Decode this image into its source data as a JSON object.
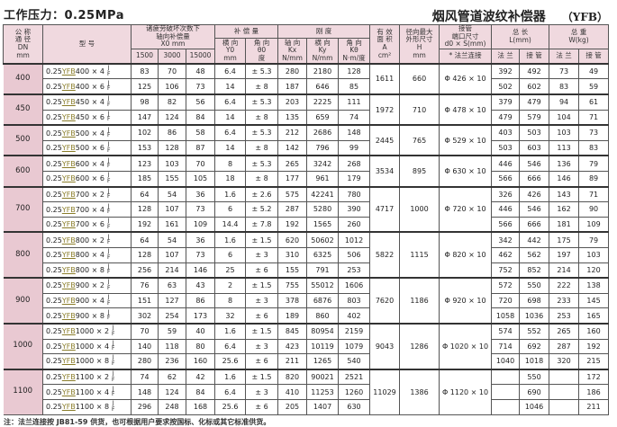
{
  "header": {
    "pressure_title": "工作压力：0.25MPa",
    "product_title": "烟风管道波纹补偿器",
    "product_code": "（YFB）"
  },
  "columns": {
    "dn": [
      "公 称",
      "通 径",
      "DN",
      "mm"
    ],
    "model": "型 号",
    "fatigue": [
      "诸疲劳破坏次数下",
      "轴向补偿量",
      "X0    mm"
    ],
    "fatigue_cycles": [
      "1500",
      "3000",
      "15000"
    ],
    "compensation": "补 偿 量",
    "lateral": [
      "横 向",
      "Y0",
      "mm"
    ],
    "angular": [
      "角 向",
      "θ0",
      "度"
    ],
    "stiffness": "刚 度",
    "kx": [
      "轴 向",
      "Kx",
      "N/mm"
    ],
    "ky": [
      "横 向",
      "Ky",
      "N/mm"
    ],
    "ktheta": [
      "角 向",
      "Kθ",
      "N·m/度"
    ],
    "area": [
      "有 效",
      "面 积",
      "A",
      "cm²"
    ],
    "radial": [
      "径向最大",
      "外形尺寸",
      "H",
      "mm"
    ],
    "pipe": [
      "接管",
      "端口尺寸",
      "d0 × S(mm)"
    ],
    "pipe_sub": "* 法兰连接",
    "length": [
      "总 长",
      "L(mm)"
    ],
    "weight": [
      "总 重",
      "W(kg)"
    ],
    "flange": "法 兰",
    "pipe_end": "接 管"
  },
  "model_prefix": "0.25",
  "model_code": "YFB",
  "jf": [
    "J",
    "F"
  ],
  "groups": [
    {
      "dn": "400",
      "area": "1611",
      "radial": "660",
      "pipe": "Φ 426 × 10",
      "rows": [
        [
          "400 × 4",
          "83",
          "70",
          "48",
          "6.4",
          "± 5.3",
          "280",
          "2180",
          "128",
          "392",
          "492",
          "73",
          "49"
        ],
        [
          "400 × 6",
          "125",
          "106",
          "73",
          "14",
          "± 8",
          "187",
          "646",
          "85",
          "502",
          "602",
          "83",
          "59"
        ]
      ]
    },
    {
      "dn": "450",
      "area": "1972",
      "radial": "710",
      "pipe": "Φ 478 × 10",
      "rows": [
        [
          "450 × 4",
          "98",
          "82",
          "56",
          "6.4",
          "± 5.3",
          "203",
          "2225",
          "111",
          "379",
          "479",
          "94",
          "61"
        ],
        [
          "450 × 6",
          "147",
          "124",
          "84",
          "14",
          "± 8",
          "135",
          "659",
          "74",
          "479",
          "579",
          "104",
          "71"
        ]
      ]
    },
    {
      "dn": "500",
      "area": "2445",
      "radial": "765",
      "pipe": "Φ 529 × 10",
      "rows": [
        [
          "500 × 4",
          "102",
          "86",
          "58",
          "6.4",
          "± 5.3",
          "212",
          "2686",
          "148",
          "403",
          "503",
          "103",
          "73"
        ],
        [
          "500 × 6",
          "153",
          "128",
          "87",
          "14",
          "± 8",
          "142",
          "796",
          "99",
          "503",
          "603",
          "113",
          "83"
        ]
      ]
    },
    {
      "dn": "600",
      "area": "3534",
      "radial": "895",
      "pipe": "Φ 630 × 10",
      "rows": [
        [
          "600 × 4",
          "123",
          "103",
          "70",
          "8",
          "± 5.3",
          "265",
          "3242",
          "268",
          "446",
          "546",
          "136",
          "79"
        ],
        [
          "600 × 6",
          "185",
          "155",
          "105",
          "18",
          "± 8",
          "177",
          "961",
          "179",
          "566",
          "666",
          "146",
          "89"
        ]
      ]
    },
    {
      "dn": "700",
      "area": "4717",
      "radial": "1000",
      "pipe": "Φ 720 × 10",
      "rows": [
        [
          "700 × 2",
          "64",
          "54",
          "36",
          "1.6",
          "± 2.6",
          "575",
          "42241",
          "780",
          "326",
          "426",
          "143",
          "71"
        ],
        [
          "700 × 4",
          "128",
          "107",
          "73",
          "6",
          "± 5.2",
          "287",
          "5280",
          "390",
          "446",
          "546",
          "162",
          "90"
        ],
        [
          "700 × 6",
          "192",
          "161",
          "109",
          "14.4",
          "± 7.8",
          "192",
          "1565",
          "260",
          "566",
          "666",
          "181",
          "109"
        ]
      ]
    },
    {
      "dn": "800",
      "area": "5822",
      "radial": "1115",
      "pipe": "Φ 820 × 10",
      "rows": [
        [
          "800 × 2",
          "64",
          "54",
          "36",
          "1.6",
          "± 1.5",
          "620",
          "50602",
          "1012",
          "342",
          "442",
          "175",
          "79"
        ],
        [
          "800 × 4",
          "128",
          "107",
          "73",
          "6",
          "± 3",
          "310",
          "6325",
          "506",
          "462",
          "562",
          "197",
          "103"
        ],
        [
          "800 × 8",
          "256",
          "214",
          "146",
          "25",
          "± 6",
          "155",
          "791",
          "253",
          "752",
          "852",
          "214",
          "120"
        ]
      ]
    },
    {
      "dn": "900",
      "area": "7620",
      "radial": "1186",
      "pipe": "Φ 920 × 10",
      "rows": [
        [
          "900 × 2",
          "76",
          "63",
          "43",
          "2",
          "± 1.5",
          "755",
          "55012",
          "1606",
          "572",
          "550",
          "222",
          "138"
        ],
        [
          "900 × 4",
          "151",
          "127",
          "86",
          "8",
          "± 3",
          "378",
          "6876",
          "803",
          "720",
          "698",
          "233",
          "145"
        ],
        [
          "900 × 8",
          "302",
          "254",
          "173",
          "32",
          "± 6",
          "189",
          "860",
          "402",
          "1058",
          "1036",
          "253",
          "165"
        ]
      ]
    },
    {
      "dn": "1000",
      "area": "9043",
      "radial": "1286",
      "pipe": "Φ 1020 × 10",
      "rows": [
        [
          "1000 × 2",
          "70",
          "59",
          "40",
          "1.6",
          "± 1.5",
          "845",
          "80954",
          "2159",
          "574",
          "552",
          "265",
          "160"
        ],
        [
          "1000 × 4",
          "140",
          "118",
          "80",
          "6.4",
          "± 3",
          "423",
          "10119",
          "1079",
          "714",
          "692",
          "287",
          "192"
        ],
        [
          "1000 × 8",
          "280",
          "236",
          "160",
          "25.6",
          "± 6",
          "211",
          "1265",
          "540",
          "1040",
          "1018",
          "320",
          "215"
        ]
      ]
    },
    {
      "dn": "1100",
      "area": "11029",
      "radial": "1386",
      "pipe": "Φ 1120 × 10",
      "rows": [
        [
          "1100 × 2",
          "74",
          "62",
          "42",
          "1.6",
          "± 1.5",
          "820",
          "90021",
          "2521",
          "",
          "550",
          "",
          "172"
        ],
        [
          "1100 × 4",
          "148",
          "124",
          "84",
          "6.4",
          "± 3",
          "410",
          "11253",
          "1260",
          "",
          "690",
          "",
          "186"
        ],
        [
          "1100 × 8",
          "296",
          "248",
          "168",
          "25.6",
          "± 6",
          "205",
          "1407",
          "630",
          "",
          "1046",
          "",
          "211"
        ]
      ]
    }
  ],
  "note": "注：法兰连接按 JB81-59 供货，也可根据用户要求按国标、化标或其它标准供货。"
}
